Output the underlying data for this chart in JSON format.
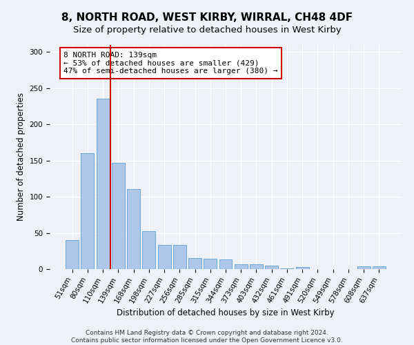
{
  "title": "8, NORTH ROAD, WEST KIRBY, WIRRAL, CH48 4DF",
  "subtitle": "Size of property relative to detached houses in West Kirby",
  "xlabel": "Distribution of detached houses by size in West Kirby",
  "ylabel": "Number of detached properties",
  "bar_labels": [
    "51sqm",
    "80sqm",
    "110sqm",
    "139sqm",
    "168sqm",
    "198sqm",
    "227sqm",
    "256sqm",
    "285sqm",
    "315sqm",
    "344sqm",
    "373sqm",
    "403sqm",
    "432sqm",
    "461sqm",
    "491sqm",
    "520sqm",
    "549sqm",
    "578sqm",
    "608sqm",
    "637sqm"
  ],
  "bar_values": [
    40,
    160,
    236,
    147,
    111,
    52,
    33,
    33,
    15,
    14,
    13,
    7,
    7,
    5,
    1,
    3,
    0,
    0,
    0,
    4,
    4
  ],
  "bar_color": "#aec6e8",
  "bar_edge_color": "#5a9fd4",
  "vline_color": "#cc0000",
  "annotation_text": "8 NORTH ROAD: 139sqm\n← 53% of detached houses are smaller (429)\n47% of semi-detached houses are larger (380) →",
  "annotation_box_facecolor": "#ffffff",
  "annotation_box_edgecolor": "#cc0000",
  "ylim": [
    0,
    310
  ],
  "yticks": [
    0,
    50,
    100,
    150,
    200,
    250,
    300
  ],
  "footer_text": "Contains HM Land Registry data © Crown copyright and database right 2024.\nContains public sector information licensed under the Open Government Licence v3.0.",
  "bg_color": "#eef2f8",
  "plot_bg_color": "#eef2f8",
  "title_fontsize": 11,
  "subtitle_fontsize": 9.5,
  "ylabel_fontsize": 8.5,
  "xlabel_fontsize": 8.5,
  "tick_fontsize": 7.5,
  "annot_fontsize": 8,
  "footer_fontsize": 6.5
}
